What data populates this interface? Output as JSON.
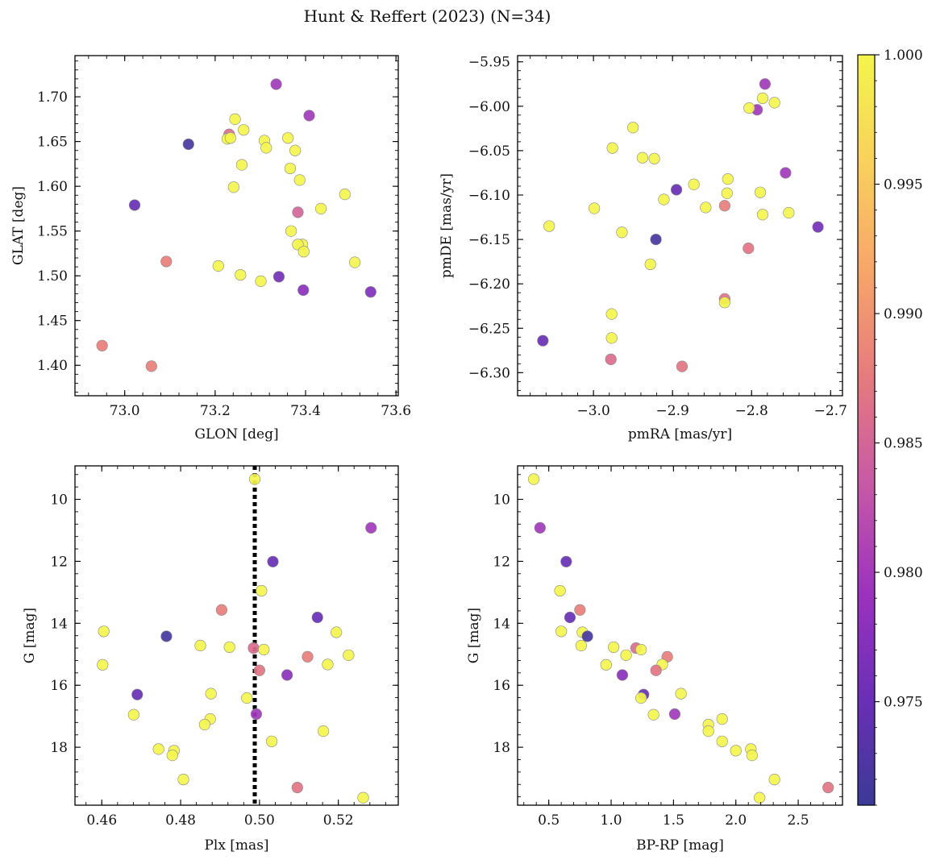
{
  "title": "Hunt & Reffert (2023) (N=34)",
  "colorbar": {
    "min": 0.971,
    "max": 1.0,
    "ticks": [
      0.975,
      0.98,
      0.985,
      0.99,
      0.995,
      1.0
    ],
    "tick_labels": [
      "0.975",
      "0.980",
      "0.985",
      "0.990",
      "0.995",
      "1.000"
    ],
    "colormap": [
      "#3b3a97",
      "#6a2fb6",
      "#9a32bf",
      "#c859a6",
      "#e67a7e",
      "#f7a56a",
      "#f9d15d",
      "#f3f54d"
    ]
  },
  "chart_data": [
    {
      "type": "scatter",
      "name": "position",
      "xlabel": "GLON [deg]",
      "ylabel": "GLAT [deg]",
      "xlim": [
        72.89,
        73.605
      ],
      "ylim": [
        1.366,
        1.746
      ],
      "xticks": [
        73.0,
        73.2,
        73.4,
        73.6
      ],
      "xtick_labels": [
        "73.0",
        "73.2",
        "73.4",
        "73.6"
      ],
      "yticks": [
        1.4,
        1.45,
        1.5,
        1.55,
        1.6,
        1.65,
        1.7
      ],
      "ytick_labels": [
        "1.40",
        "1.45",
        "1.50",
        "1.55",
        "1.60",
        "1.65",
        "1.70"
      ],
      "points": [
        {
          "x": 73.335,
          "y": 1.714,
          "c": 0.98
        },
        {
          "x": 73.408,
          "y": 1.679,
          "c": 0.98
        },
        {
          "x": 73.231,
          "y": 1.658,
          "c": 0.986
        },
        {
          "x": 73.244,
          "y": 1.675,
          "c": 1.0
        },
        {
          "x": 73.263,
          "y": 1.663,
          "c": 1.0
        },
        {
          "x": 73.227,
          "y": 1.653,
          "c": 1.0
        },
        {
          "x": 73.234,
          "y": 1.654,
          "c": 1.0
        },
        {
          "x": 73.141,
          "y": 1.647,
          "c": 0.972
        },
        {
          "x": 73.309,
          "y": 1.651,
          "c": 1.0
        },
        {
          "x": 73.361,
          "y": 1.654,
          "c": 1.0
        },
        {
          "x": 73.313,
          "y": 1.643,
          "c": 1.0
        },
        {
          "x": 73.377,
          "y": 1.64,
          "c": 1.0
        },
        {
          "x": 73.259,
          "y": 1.624,
          "c": 1.0
        },
        {
          "x": 73.366,
          "y": 1.62,
          "c": 1.0
        },
        {
          "x": 73.387,
          "y": 1.607,
          "c": 1.0
        },
        {
          "x": 73.241,
          "y": 1.599,
          "c": 1.0
        },
        {
          "x": 73.487,
          "y": 1.591,
          "c": 1.0
        },
        {
          "x": 73.022,
          "y": 1.579,
          "c": 0.975
        },
        {
          "x": 73.383,
          "y": 1.571,
          "c": 0.985
        },
        {
          "x": 73.434,
          "y": 1.575,
          "c": 1.0
        },
        {
          "x": 73.368,
          "y": 1.55,
          "c": 1.0
        },
        {
          "x": 73.393,
          "y": 1.535,
          "c": 1.0
        },
        {
          "x": 73.383,
          "y": 1.535,
          "c": 1.0
        },
        {
          "x": 73.396,
          "y": 1.527,
          "c": 1.0
        },
        {
          "x": 73.092,
          "y": 1.516,
          "c": 0.988
        },
        {
          "x": 73.509,
          "y": 1.515,
          "c": 1.0
        },
        {
          "x": 73.207,
          "y": 1.511,
          "c": 1.0
        },
        {
          "x": 73.256,
          "y": 1.501,
          "c": 1.0
        },
        {
          "x": 73.341,
          "y": 1.499,
          "c": 0.976
        },
        {
          "x": 73.301,
          "y": 1.494,
          "c": 1.0
        },
        {
          "x": 73.395,
          "y": 1.484,
          "c": 0.978
        },
        {
          "x": 73.544,
          "y": 1.482,
          "c": 0.977
        },
        {
          "x": 72.95,
          "y": 1.422,
          "c": 0.988
        },
        {
          "x": 73.059,
          "y": 1.399,
          "c": 0.988
        }
      ]
    },
    {
      "type": "scatter",
      "name": "proper-motion",
      "xlabel": "pmRA [mas/yr]",
      "ylabel": "pmDE [mas/yr]",
      "xlim": [
        -3.096,
        -2.685
      ],
      "ylim": [
        -6.326,
        -5.943
      ],
      "xticks": [
        -3.0,
        -2.9,
        -2.8,
        -2.7
      ],
      "xtick_labels": [
        "−3.0",
        "−2.9",
        "−2.8",
        "−2.7"
      ],
      "yticks": [
        -6.3,
        -6.25,
        -6.2,
        -6.15,
        -6.1,
        -6.05,
        -6.0,
        -5.95
      ],
      "ytick_labels": [
        "−6.30",
        "−6.25",
        "−6.20",
        "−6.15",
        "−6.10",
        "−6.05",
        "−6.00",
        "−5.95"
      ],
      "points": [
        {
          "x": -2.783,
          "y": -5.975,
          "c": 0.98
        },
        {
          "x": -2.786,
          "y": -5.991,
          "c": 1.0
        },
        {
          "x": -2.771,
          "y": -5.996,
          "c": 1.0
        },
        {
          "x": -2.793,
          "y": -6.004,
          "c": 0.98
        },
        {
          "x": -2.803,
          "y": -6.002,
          "c": 1.0
        },
        {
          "x": -2.95,
          "y": -6.024,
          "c": 1.0
        },
        {
          "x": -2.976,
          "y": -6.047,
          "c": 1.0
        },
        {
          "x": -2.938,
          "y": -6.058,
          "c": 1.0
        },
        {
          "x": -2.923,
          "y": -6.059,
          "c": 1.0
        },
        {
          "x": -2.757,
          "y": -6.075,
          "c": 0.98
        },
        {
          "x": -2.83,
          "y": -6.082,
          "c": 1.0
        },
        {
          "x": -2.873,
          "y": -6.088,
          "c": 1.0
        },
        {
          "x": -2.895,
          "y": -6.094,
          "c": 0.975
        },
        {
          "x": -2.831,
          "y": -6.098,
          "c": 1.0
        },
        {
          "x": -2.789,
          "y": -6.097,
          "c": 1.0
        },
        {
          "x": -2.911,
          "y": -6.105,
          "c": 1.0
        },
        {
          "x": -2.834,
          "y": -6.112,
          "c": 0.988
        },
        {
          "x": -2.858,
          "y": -6.114,
          "c": 1.0
        },
        {
          "x": -2.999,
          "y": -6.115,
          "c": 1.0
        },
        {
          "x": -2.786,
          "y": -6.122,
          "c": 1.0
        },
        {
          "x": -2.753,
          "y": -6.12,
          "c": 1.0
        },
        {
          "x": -3.056,
          "y": -6.135,
          "c": 1.0
        },
        {
          "x": -2.716,
          "y": -6.136,
          "c": 0.976
        },
        {
          "x": -2.964,
          "y": -6.142,
          "c": 1.0
        },
        {
          "x": -2.921,
          "y": -6.15,
          "c": 0.972
        },
        {
          "x": -2.804,
          "y": -6.16,
          "c": 0.987
        },
        {
          "x": -2.928,
          "y": -6.178,
          "c": 1.0
        },
        {
          "x": -2.834,
          "y": -6.217,
          "c": 0.987
        },
        {
          "x": -2.834,
          "y": -6.221,
          "c": 1.0
        },
        {
          "x": -2.977,
          "y": -6.234,
          "c": 1.0
        },
        {
          "x": -2.977,
          "y": -6.261,
          "c": 1.0
        },
        {
          "x": -3.064,
          "y": -6.264,
          "c": 0.975
        },
        {
          "x": -2.978,
          "y": -6.285,
          "c": 0.986
        },
        {
          "x": -2.888,
          "y": -6.293,
          "c": 0.987
        }
      ]
    },
    {
      "type": "scatter",
      "name": "parallax-magnitude",
      "xlabel": "Plx [mas]",
      "ylabel": "G [mag]",
      "xlim": [
        0.4532,
        0.5352
      ],
      "ylim": [
        19.87,
        8.92
      ],
      "vline": {
        "x": 0.4988,
        "style": "dotted"
      },
      "xticks": [
        0.46,
        0.48,
        0.5,
        0.52
      ],
      "xtick_labels": [
        "0.46",
        "0.48",
        "0.50",
        "0.52"
      ],
      "yticks": [
        10,
        12,
        14,
        16,
        18
      ],
      "ytick_labels": [
        "10",
        "12",
        "14",
        "16",
        "18"
      ],
      "points": [
        {
          "x": 0.4988,
          "y": 9.35,
          "c": 1.0
        },
        {
          "x": 0.5283,
          "y": 10.92,
          "c": 0.98
        },
        {
          "x": 0.5034,
          "y": 12.01,
          "c": 0.975
        },
        {
          "x": 0.5005,
          "y": 12.95,
          "c": 1.0
        },
        {
          "x": 0.4904,
          "y": 13.57,
          "c": 0.988
        },
        {
          "x": 0.5147,
          "y": 13.81,
          "c": 0.975
        },
        {
          "x": 0.4605,
          "y": 14.26,
          "c": 1.0
        },
        {
          "x": 0.5195,
          "y": 14.29,
          "c": 1.0
        },
        {
          "x": 0.4764,
          "y": 14.42,
          "c": 0.972
        },
        {
          "x": 0.485,
          "y": 14.72,
          "c": 1.0
        },
        {
          "x": 0.4924,
          "y": 14.77,
          "c": 1.0
        },
        {
          "x": 0.4985,
          "y": 14.8,
          "c": 0.986
        },
        {
          "x": 0.5011,
          "y": 14.85,
          "c": 1.0
        },
        {
          "x": 0.5226,
          "y": 15.03,
          "c": 1.0
        },
        {
          "x": 0.5122,
          "y": 15.08,
          "c": 0.988
        },
        {
          "x": 0.4602,
          "y": 15.34,
          "c": 1.0
        },
        {
          "x": 0.5173,
          "y": 15.33,
          "c": 1.0
        },
        {
          "x": 0.5,
          "y": 15.52,
          "c": 0.987
        },
        {
          "x": 0.507,
          "y": 15.67,
          "c": 0.978
        },
        {
          "x": 0.469,
          "y": 16.3,
          "c": 0.975
        },
        {
          "x": 0.4877,
          "y": 16.27,
          "c": 1.0
        },
        {
          "x": 0.4968,
          "y": 16.41,
          "c": 1.0
        },
        {
          "x": 0.4992,
          "y": 16.93,
          "c": 0.98
        },
        {
          "x": 0.4681,
          "y": 16.95,
          "c": 1.0
        },
        {
          "x": 0.4875,
          "y": 17.09,
          "c": 1.0
        },
        {
          "x": 0.4861,
          "y": 17.27,
          "c": 1.0
        },
        {
          "x": 0.5162,
          "y": 17.48,
          "c": 1.0
        },
        {
          "x": 0.5031,
          "y": 17.81,
          "c": 1.0
        },
        {
          "x": 0.4744,
          "y": 18.06,
          "c": 1.0
        },
        {
          "x": 0.4783,
          "y": 18.11,
          "c": 1.0
        },
        {
          "x": 0.4779,
          "y": 18.26,
          "c": 1.0
        },
        {
          "x": 0.4807,
          "y": 19.04,
          "c": 1.0
        },
        {
          "x": 0.5096,
          "y": 19.3,
          "c": 0.987
        },
        {
          "x": 0.5263,
          "y": 19.63,
          "c": 1.0
        }
      ]
    },
    {
      "type": "scatter",
      "name": "color-magnitude",
      "xlabel": "BP-RP [mag]",
      "ylabel": "G [mag]",
      "xlim": [
        0.25,
        2.855
      ],
      "ylim": [
        19.87,
        8.92
      ],
      "xticks": [
        0.5,
        1.0,
        1.5,
        2.0,
        2.5
      ],
      "xtick_labels": [
        "0.5",
        "1.0",
        "1.5",
        "2.0",
        "2.5"
      ],
      "yticks": [
        10,
        12,
        14,
        16,
        18
      ],
      "ytick_labels": [
        "10",
        "12",
        "14",
        "16",
        "18"
      ],
      "points": [
        {
          "x": 0.38,
          "y": 9.35,
          "c": 1.0
        },
        {
          "x": 0.43,
          "y": 10.92,
          "c": 0.98
        },
        {
          "x": 0.64,
          "y": 12.01,
          "c": 0.975
        },
        {
          "x": 0.59,
          "y": 12.95,
          "c": 1.0
        },
        {
          "x": 0.75,
          "y": 13.57,
          "c": 0.988
        },
        {
          "x": 0.67,
          "y": 13.81,
          "c": 0.975
        },
        {
          "x": 0.6,
          "y": 14.26,
          "c": 1.0
        },
        {
          "x": 0.77,
          "y": 14.29,
          "c": 1.0
        },
        {
          "x": 0.81,
          "y": 14.42,
          "c": 0.972
        },
        {
          "x": 0.76,
          "y": 14.72,
          "c": 1.0
        },
        {
          "x": 1.02,
          "y": 14.77,
          "c": 1.0
        },
        {
          "x": 1.2,
          "y": 14.8,
          "c": 0.986
        },
        {
          "x": 1.24,
          "y": 14.85,
          "c": 1.0
        },
        {
          "x": 1.12,
          "y": 15.03,
          "c": 1.0
        },
        {
          "x": 1.45,
          "y": 15.08,
          "c": 0.988
        },
        {
          "x": 0.96,
          "y": 15.34,
          "c": 1.0
        },
        {
          "x": 1.41,
          "y": 15.33,
          "c": 1.0
        },
        {
          "x": 1.36,
          "y": 15.52,
          "c": 0.987
        },
        {
          "x": 1.09,
          "y": 15.67,
          "c": 0.978
        },
        {
          "x": 1.26,
          "y": 16.3,
          "c": 0.975
        },
        {
          "x": 1.56,
          "y": 16.27,
          "c": 1.0
        },
        {
          "x": 1.24,
          "y": 16.41,
          "c": 1.0
        },
        {
          "x": 1.51,
          "y": 16.93,
          "c": 0.98
        },
        {
          "x": 1.34,
          "y": 16.95,
          "c": 1.0
        },
        {
          "x": 1.89,
          "y": 17.09,
          "c": 1.0
        },
        {
          "x": 1.78,
          "y": 17.27,
          "c": 1.0
        },
        {
          "x": 1.78,
          "y": 17.48,
          "c": 1.0
        },
        {
          "x": 1.89,
          "y": 17.81,
          "c": 1.0
        },
        {
          "x": 2.12,
          "y": 18.06,
          "c": 1.0
        },
        {
          "x": 2.0,
          "y": 18.11,
          "c": 1.0
        },
        {
          "x": 2.13,
          "y": 18.26,
          "c": 1.0
        },
        {
          "x": 2.31,
          "y": 19.04,
          "c": 1.0
        },
        {
          "x": 2.74,
          "y": 19.3,
          "c": 0.987
        },
        {
          "x": 2.19,
          "y": 19.63,
          "c": 1.0
        }
      ]
    }
  ]
}
